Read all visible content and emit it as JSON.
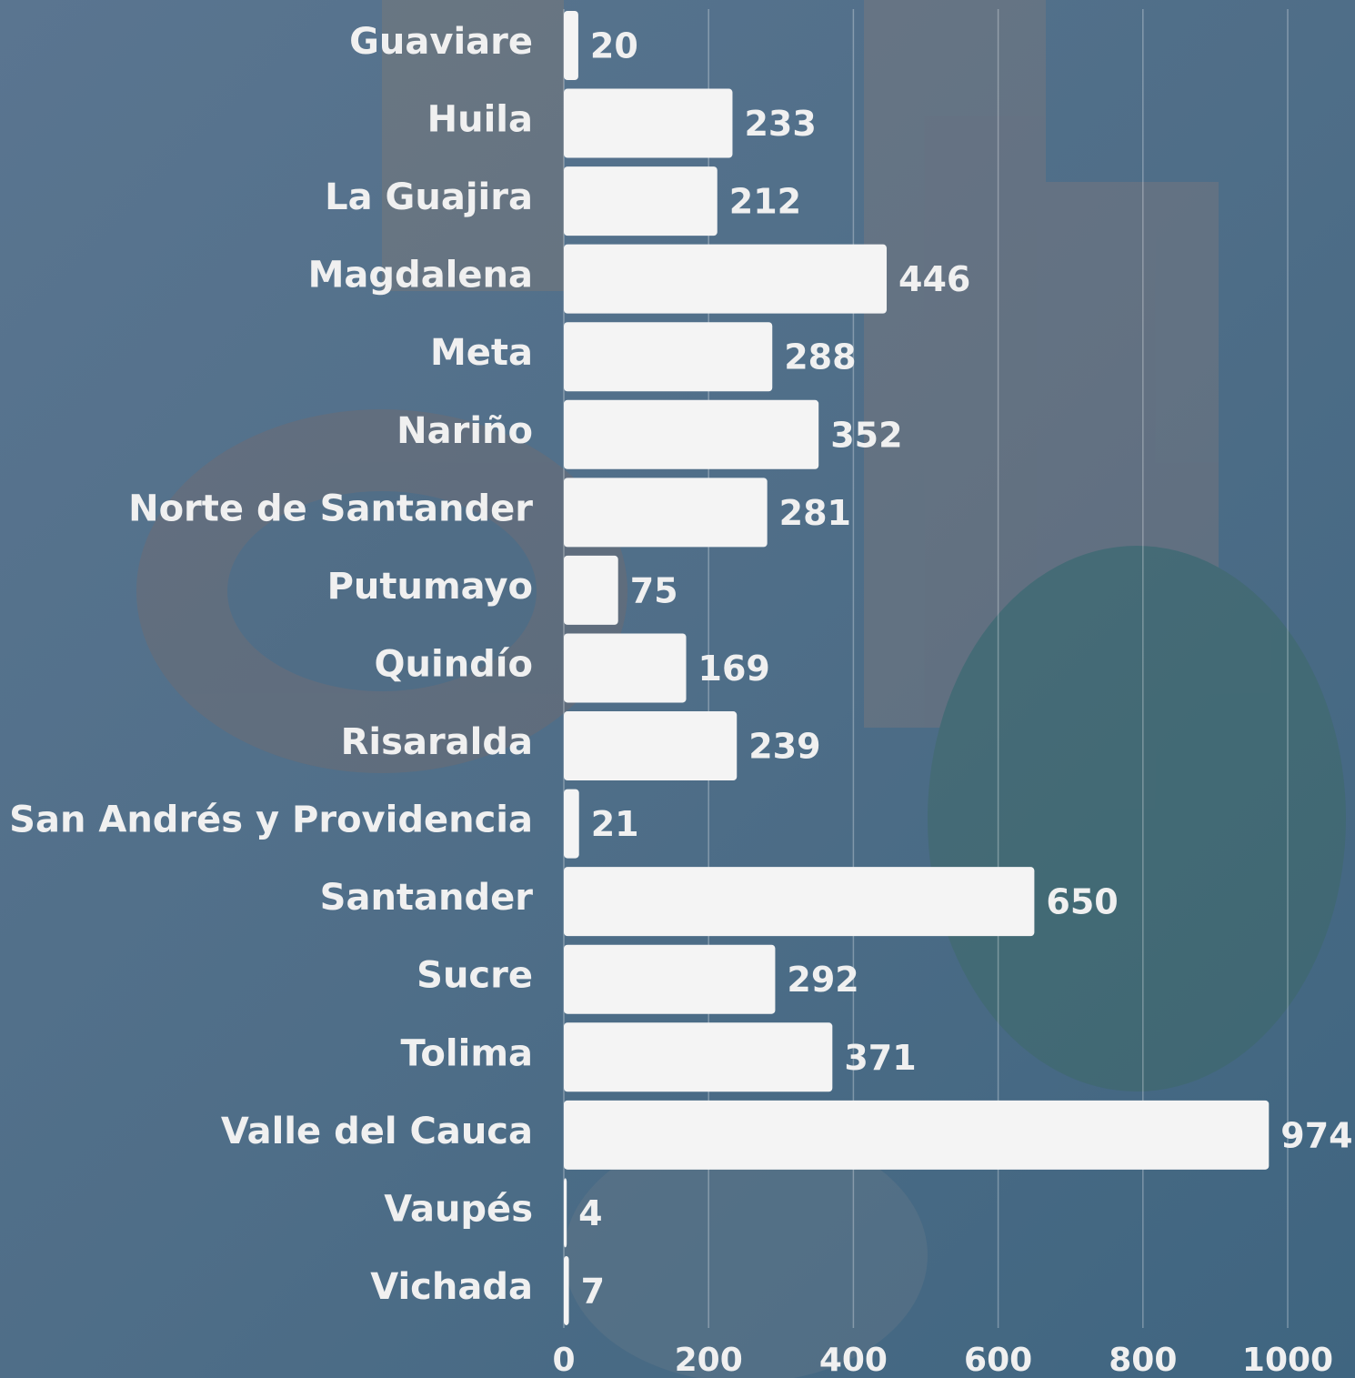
{
  "chart_data": {
    "type": "bar",
    "orientation": "horizontal",
    "categories": [
      "Guaviare",
      "Huila",
      "La Guajira",
      "Magdalena",
      "Meta",
      "Nariño",
      "Norte de Santander",
      "Putumayo",
      "Quindío",
      "Risaralda",
      "San Andrés y Providencia",
      "Santander",
      "Sucre",
      "Tolima",
      "Valle del Cauca",
      "Vaupés",
      "Vichada"
    ],
    "values": [
      20,
      233,
      212,
      446,
      288,
      352,
      281,
      75,
      169,
      239,
      21,
      650,
      292,
      371,
      974,
      4,
      7
    ],
    "color": "#f4f4f4",
    "xlim": [
      0,
      1000
    ],
    "xticks": [
      0,
      200,
      400,
      600,
      800,
      1000
    ],
    "grid": true
  }
}
